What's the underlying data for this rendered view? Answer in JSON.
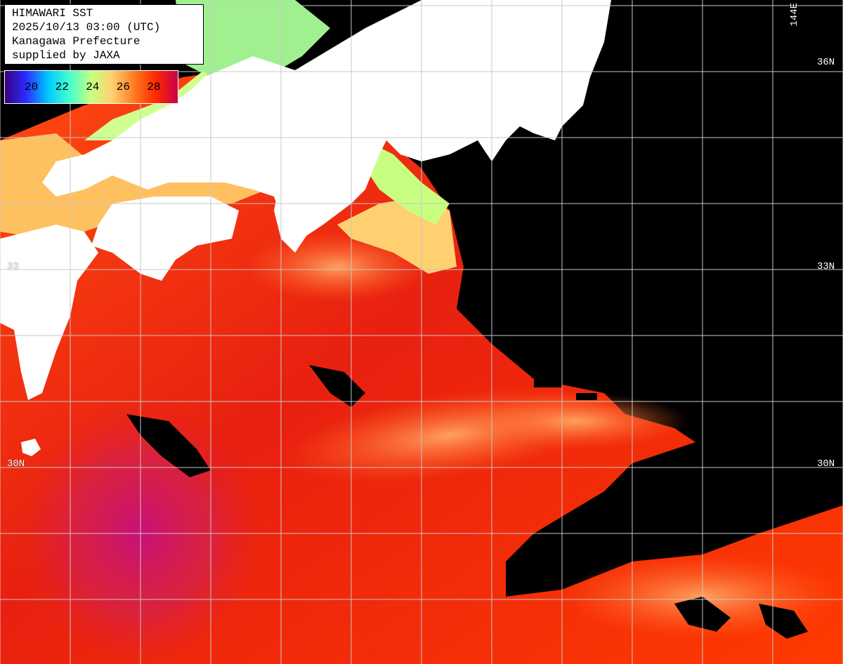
{
  "info": {
    "line1": "HIMAWARI SST",
    "line2": "2025/10/13 03:00 (UTC)",
    "line3": "Kanagawa Prefecture",
    "line4": "supplied by JAXA"
  },
  "legend": {
    "ticks": [
      "20",
      "22",
      "24",
      "26",
      "28"
    ],
    "colors": [
      "#3a007a",
      "#2a2aff",
      "#00c8ff",
      "#40ffd0",
      "#c8ff80",
      "#ffd070",
      "#ff7a20",
      "#ff2a00",
      "#c8004a"
    ]
  },
  "grid_labels": {
    "lat_36_right": "36N",
    "lat_33_right": "33N",
    "lat_33_left": "33",
    "lat_30_right": "30N",
    "lat_30_left": "30N",
    "lon_144": "144E"
  },
  "map_colors": {
    "land": "#ffffff",
    "no_data": "#000000",
    "grid": "#c8c8c8",
    "warm": "#ff3a00",
    "hot": "#c8005a",
    "cool": "#ffd070",
    "cold": "#c8ff80"
  }
}
